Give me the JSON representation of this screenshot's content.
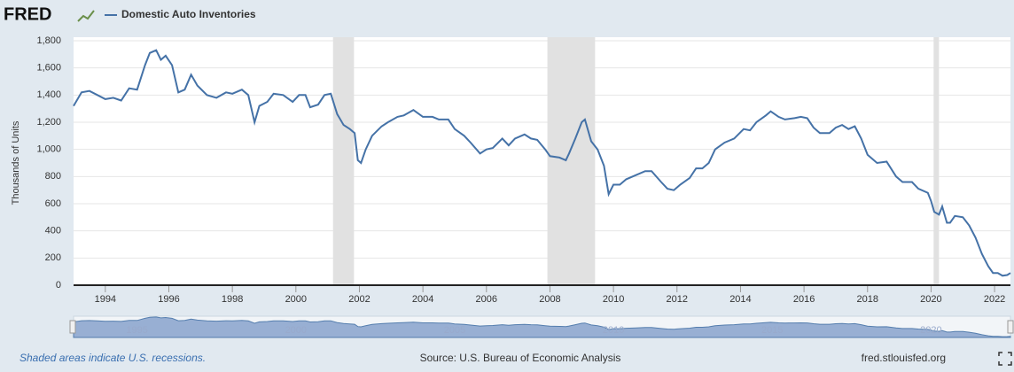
{
  "logo": "FRED",
  "chart_data": {
    "type": "line",
    "y_label": "Thousands of Units",
    "footer_left": "Shaded areas indicate U.S. recessions.",
    "footer_source": "Source: U.S. Bureau of Economic Analysis",
    "footer_right": "fred.stlouisfed.org",
    "xlim": [
      1993,
      2022.5
    ],
    "xticks": [
      1994,
      1996,
      1998,
      2000,
      2002,
      2004,
      2006,
      2008,
      2010,
      2012,
      2014,
      2016,
      2018,
      2020,
      2022
    ],
    "ylim": [
      0,
      1800
    ],
    "yticks": [
      0,
      200,
      400,
      600,
      800,
      {
        "value": 1000,
        "label": "1,000"
      },
      {
        "value": 1200,
        "label": "1,200"
      },
      {
        "value": 1400,
        "label": "1,400"
      },
      {
        "value": 1600,
        "label": "1,600"
      },
      {
        "value": 1800,
        "label": "1,800"
      }
    ],
    "grid": true,
    "recessions": [
      [
        2001.17,
        2001.83
      ],
      [
        2007.92,
        2009.42
      ],
      [
        2020.08,
        2020.25
      ]
    ],
    "navigator_ticks": [
      1995,
      2000,
      2005,
      2010,
      2015,
      2020
    ],
    "x": [
      1993.0,
      1993.25,
      1993.5,
      1993.75,
      1994.0,
      1994.25,
      1994.5,
      1994.75,
      1995.0,
      1995.25,
      1995.4,
      1995.6,
      1995.75,
      1995.9,
      1996.1,
      1996.3,
      1996.5,
      1996.7,
      1996.9,
      1997.2,
      1997.5,
      1997.8,
      1998.0,
      1998.3,
      1998.5,
      1998.7,
      1998.85,
      1999.1,
      1999.3,
      1999.6,
      1999.9,
      2000.1,
      2000.3,
      2000.45,
      2000.7,
      2000.9,
      2001.1,
      2001.3,
      2001.5,
      2001.7,
      2001.85,
      2001.95,
      2002.05,
      2002.2,
      2002.4,
      2002.7,
      2002.9,
      2003.2,
      2003.4,
      2003.7,
      2004.0,
      2004.3,
      2004.5,
      2004.8,
      2005.0,
      2005.3,
      2005.5,
      2005.8,
      2006.0,
      2006.2,
      2006.5,
      2006.7,
      2006.9,
      2007.2,
      2007.4,
      2007.6,
      2007.85,
      2008.0,
      2008.3,
      2008.5,
      2008.6,
      2008.8,
      2009.0,
      2009.1,
      2009.3,
      2009.5,
      2009.7,
      2009.85,
      2010.0,
      2010.2,
      2010.4,
      2010.7,
      2011.0,
      2011.2,
      2011.5,
      2011.7,
      2011.9,
      2012.1,
      2012.4,
      2012.6,
      2012.8,
      2013.0,
      2013.2,
      2013.5,
      2013.8,
      2014.1,
      2014.3,
      2014.5,
      2014.8,
      2014.95,
      2015.2,
      2015.4,
      2015.7,
      2015.9,
      2016.1,
      2016.3,
      2016.5,
      2016.8,
      2017.0,
      2017.2,
      2017.4,
      2017.6,
      2017.8,
      2018.0,
      2018.3,
      2018.6,
      2018.9,
      2019.1,
      2019.4,
      2019.6,
      2019.9,
      2020.0,
      2020.1,
      2020.25,
      2020.35,
      2020.5,
      2020.6,
      2020.75,
      2021.0,
      2021.2,
      2021.4,
      2021.6,
      2021.8,
      2021.95,
      2022.1,
      2022.25,
      2022.4,
      2022.5
    ],
    "series": [
      {
        "name": "Domestic Auto Inventories",
        "color": "#4572a7",
        "values": [
          1320,
          1420,
          1430,
          1400,
          1370,
          1380,
          1360,
          1450,
          1440,
          1620,
          1710,
          1730,
          1660,
          1690,
          1620,
          1420,
          1440,
          1550,
          1470,
          1400,
          1380,
          1420,
          1410,
          1440,
          1400,
          1200,
          1320,
          1350,
          1410,
          1400,
          1350,
          1400,
          1400,
          1310,
          1330,
          1400,
          1410,
          1260,
          1180,
          1150,
          1120,
          920,
          900,
          1000,
          1100,
          1170,
          1200,
          1240,
          1250,
          1290,
          1240,
          1240,
          1220,
          1220,
          1150,
          1100,
          1050,
          970,
          1000,
          1010,
          1080,
          1030,
          1080,
          1110,
          1080,
          1070,
          1000,
          950,
          940,
          920,
          970,
          1080,
          1200,
          1220,
          1060,
          1000,
          880,
          670,
          740,
          740,
          780,
          810,
          840,
          840,
          760,
          710,
          700,
          740,
          790,
          860,
          860,
          900,
          1000,
          1050,
          1080,
          1150,
          1140,
          1200,
          1250,
          1280,
          1240,
          1220,
          1230,
          1240,
          1230,
          1160,
          1120,
          1120,
          1160,
          1180,
          1150,
          1170,
          1080,
          960,
          900,
          910,
          800,
          760,
          760,
          710,
          680,
          620,
          540,
          520,
          580,
          460,
          460,
          510,
          500,
          440,
          350,
          230,
          140,
          90,
          90,
          70,
          75,
          90
        ]
      }
    ]
  }
}
